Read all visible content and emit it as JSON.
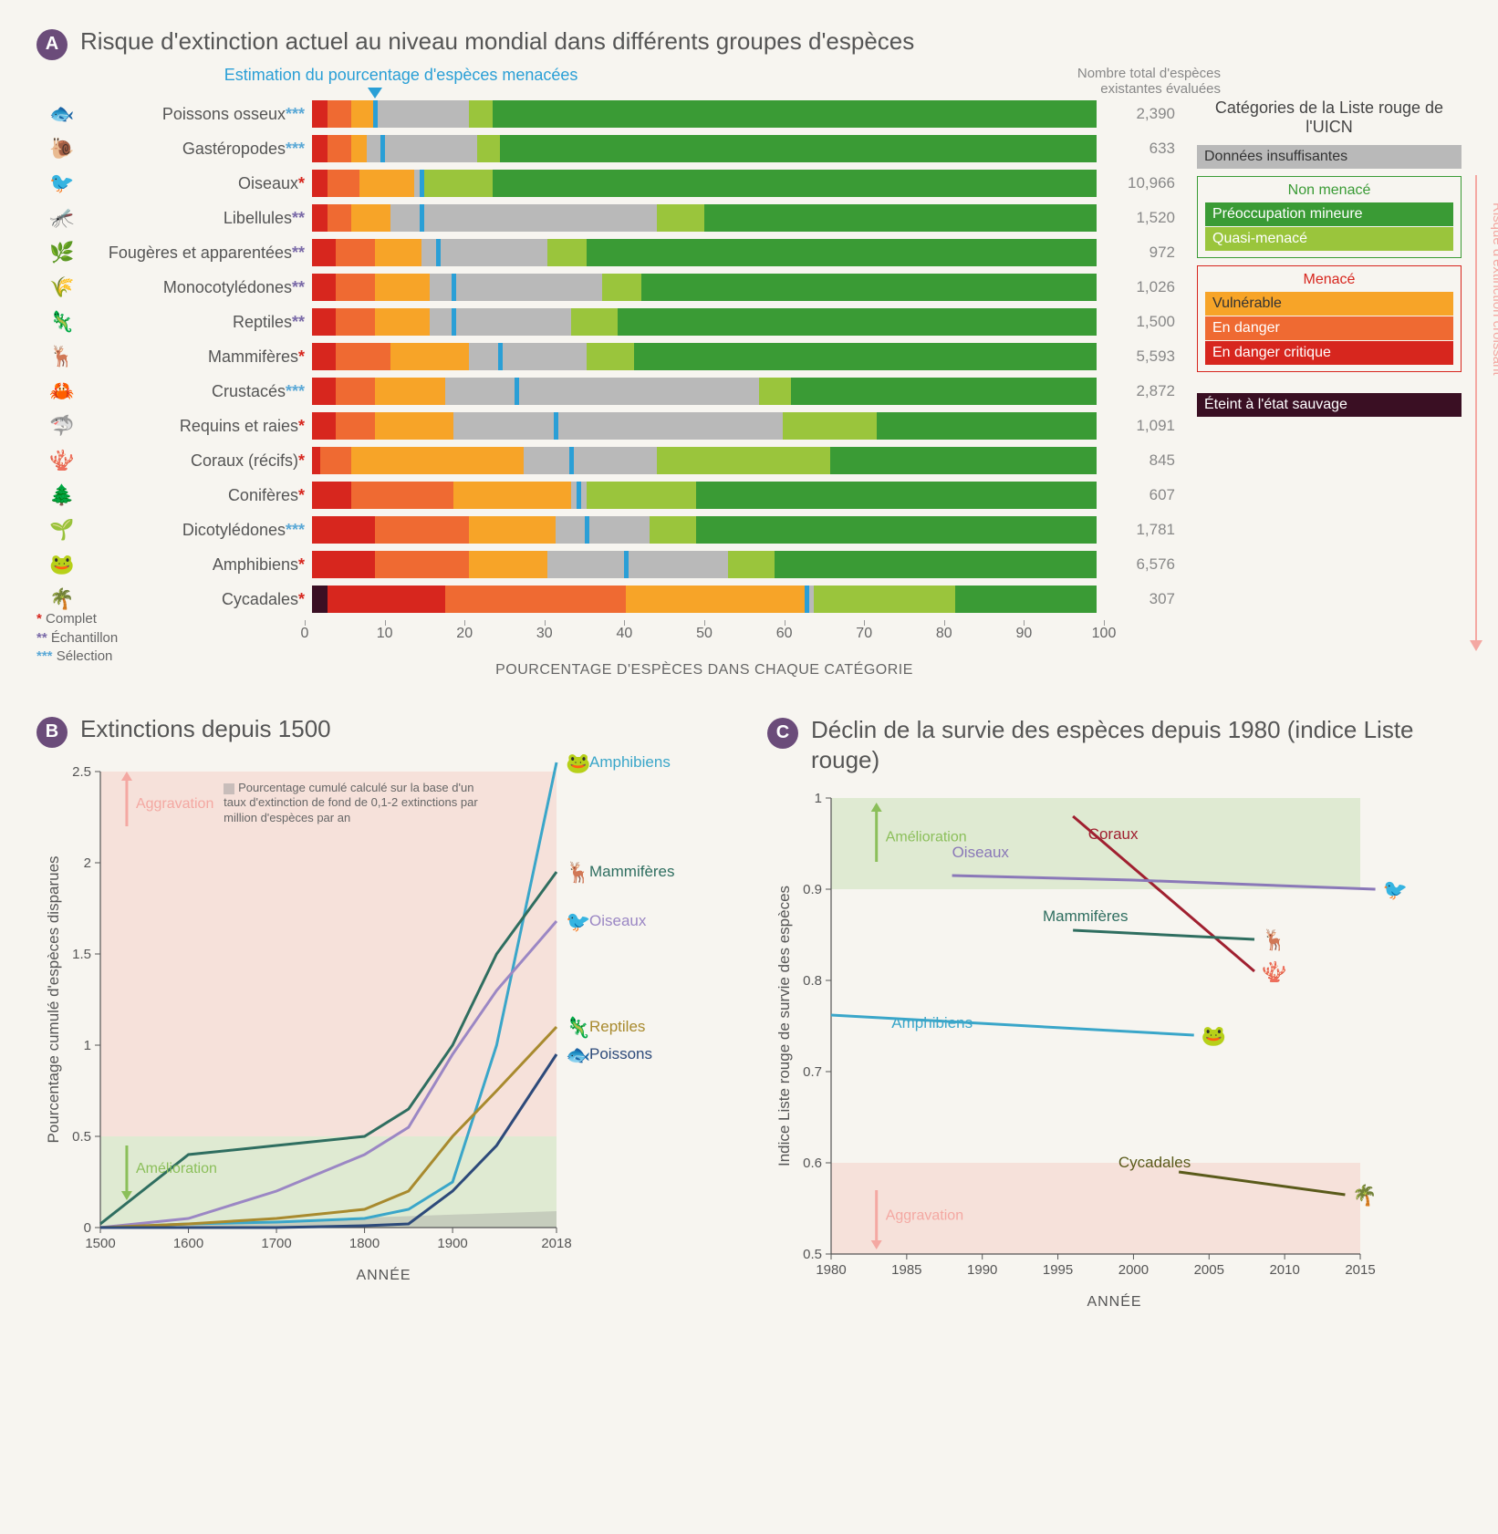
{
  "colors": {
    "badge": "#6b4c7a",
    "estimate_tick": "#2a9fd6",
    "cat_EX": "#3a0f23",
    "cat_CR": "#d7261e",
    "cat_EN": "#ef6a32",
    "cat_VU": "#f7a428",
    "cat_DD": "#b9b9b9",
    "cat_NT": "#9ac53c",
    "cat_LC": "#3a9b35",
    "fn_complet": "#d7261e",
    "fn_echantillon": "#7a6aa8",
    "fn_selection": "#5aa8d6",
    "band_green": "#c7e0b4",
    "band_pink": "#f6cdc3",
    "arrow_green": "#8bbf5a",
    "arrow_pink": "#f4a8a2",
    "grey_text": "#888888"
  },
  "panelA": {
    "title": "Risque d'extinction actuel au niveau mondial dans différents groupes d'espèces",
    "estimate_label": "Estimation du pourcentage d'espèces menacées",
    "count_header": "Nombre total d'espèces existantes évaluées",
    "x_axis_title": "POURCENTAGE D'ESPÈCES DANS CHAQUE CATÉGORIE",
    "x_ticks": [
      0,
      10,
      20,
      30,
      40,
      50,
      60,
      70,
      80,
      90,
      100
    ],
    "footnotes": [
      {
        "mark": "*",
        "color_key": "fn_complet",
        "label": "Complet"
      },
      {
        "mark": "**",
        "color_key": "fn_echantillon",
        "label": "Échantillon"
      },
      {
        "mark": "***",
        "color_key": "fn_selection",
        "label": "Sélection"
      }
    ],
    "legend": {
      "title": "Catégories de la Liste rouge de l'UICN",
      "dd": "Données insuffisantes",
      "non_menace": {
        "head": "Non menacé",
        "border": "#3a9b35",
        "items": [
          {
            "label": "Préoccupation mineure",
            "color_key": "cat_LC"
          },
          {
            "label": "Quasi-menacé",
            "color_key": "cat_NT"
          }
        ]
      },
      "menace": {
        "head": "Menacé",
        "border": "#d7261e",
        "items": [
          {
            "label": "Vulnérable",
            "color_key": "cat_VU",
            "text": "#333"
          },
          {
            "label": "En danger",
            "color_key": "cat_EN",
            "text": "#fff"
          },
          {
            "label": "En danger critique",
            "color_key": "cat_CR",
            "text": "#fff"
          }
        ]
      },
      "extinct": {
        "label": "Éteint à l'état sauvage",
        "color_key": "cat_EX",
        "text": "#fff"
      },
      "risk_arrow": "Risque d'extinction croissant"
    },
    "rows": [
      {
        "label": "Poissons osseux",
        "fn": "***",
        "fn_key": "fn_selection",
        "count": "2,390",
        "icon": "🐟",
        "seg": {
          "EX": 0,
          "CR": 2,
          "EN": 3,
          "VU": 3,
          "DD": 12,
          "NT": 3,
          "LC": 77
        },
        "est": 8
      },
      {
        "label": "Gastéropodes",
        "fn": "***",
        "fn_key": "fn_selection",
        "count": "633",
        "icon": "🐌",
        "seg": {
          "EX": 0,
          "CR": 2,
          "EN": 3,
          "VU": 2,
          "DD": 14,
          "NT": 3,
          "LC": 76
        },
        "est": 9
      },
      {
        "label": "Oiseaux",
        "fn": "*",
        "fn_key": "fn_complet",
        "count": "10,966",
        "icon": "🐦",
        "seg": {
          "EX": 0,
          "CR": 2,
          "EN": 4,
          "VU": 7,
          "DD": 1,
          "NT": 9,
          "LC": 77
        },
        "est": 14
      },
      {
        "label": "Libellules",
        "fn": "**",
        "fn_key": "fn_echantillon",
        "count": "1,520",
        "icon": "🦟",
        "seg": {
          "EX": 0,
          "CR": 2,
          "EN": 3,
          "VU": 5,
          "DD": 34,
          "NT": 6,
          "LC": 50
        },
        "est": 14
      },
      {
        "label": "Fougères et apparentées",
        "fn": "**",
        "fn_key": "fn_echantillon",
        "count": "972",
        "icon": "🌿",
        "seg": {
          "EX": 0,
          "CR": 3,
          "EN": 5,
          "VU": 6,
          "DD": 16,
          "NT": 5,
          "LC": 65
        },
        "est": 16
      },
      {
        "label": "Monocotylédones",
        "fn": "**",
        "fn_key": "fn_echantillon",
        "count": "1,026",
        "icon": "🌾",
        "seg": {
          "EX": 0,
          "CR": 3,
          "EN": 5,
          "VU": 7,
          "DD": 22,
          "NT": 5,
          "LC": 58
        },
        "est": 18
      },
      {
        "label": "Reptiles",
        "fn": "**",
        "fn_key": "fn_echantillon",
        "count": "1,500",
        "icon": "🦎",
        "seg": {
          "EX": 0,
          "CR": 3,
          "EN": 5,
          "VU": 7,
          "DD": 18,
          "NT": 6,
          "LC": 61
        },
        "est": 18
      },
      {
        "label": "Mammifères",
        "fn": "*",
        "fn_key": "fn_complet",
        "count": "5,593",
        "icon": "🦌",
        "seg": {
          "EX": 0,
          "CR": 3,
          "EN": 7,
          "VU": 10,
          "DD": 15,
          "NT": 6,
          "LC": 59
        },
        "est": 24
      },
      {
        "label": "Crustacés",
        "fn": "***",
        "fn_key": "fn_selection",
        "count": "2,872",
        "icon": "🦀",
        "seg": {
          "EX": 0,
          "CR": 3,
          "EN": 5,
          "VU": 9,
          "DD": 40,
          "NT": 4,
          "LC": 39
        },
        "est": 26
      },
      {
        "label": "Requins et raies",
        "fn": "*",
        "fn_key": "fn_complet",
        "count": "1,091",
        "icon": "🦈",
        "seg": {
          "EX": 0,
          "CR": 3,
          "EN": 5,
          "VU": 10,
          "DD": 42,
          "NT": 12,
          "LC": 28
        },
        "est": 31
      },
      {
        "label": "Coraux (récifs)",
        "fn": "*",
        "fn_key": "fn_complet",
        "count": "845",
        "icon": "🪸",
        "seg": {
          "EX": 0,
          "CR": 1,
          "EN": 4,
          "VU": 22,
          "DD": 17,
          "NT": 22,
          "LC": 34
        },
        "est": 33
      },
      {
        "label": "Conifères",
        "fn": "*",
        "fn_key": "fn_complet",
        "count": "607",
        "icon": "🌲",
        "seg": {
          "EX": 0,
          "CR": 5,
          "EN": 13,
          "VU": 15,
          "DD": 2,
          "NT": 14,
          "LC": 51
        },
        "est": 34
      },
      {
        "label": "Dicotylédones",
        "fn": "***",
        "fn_key": "fn_selection",
        "count": "1,781",
        "icon": "🌱",
        "seg": {
          "EX": 0,
          "CR": 8,
          "EN": 12,
          "VU": 11,
          "DD": 12,
          "NT": 6,
          "LC": 51
        },
        "est": 35
      },
      {
        "label": "Amphibiens",
        "fn": "*",
        "fn_key": "fn_complet",
        "count": "6,576",
        "icon": "🐸",
        "seg": {
          "EX": 0,
          "CR": 8,
          "EN": 12,
          "VU": 10,
          "DD": 23,
          "NT": 6,
          "LC": 41
        },
        "est": 40
      },
      {
        "label": "Cycadales",
        "fn": "*",
        "fn_key": "fn_complet",
        "count": "307",
        "icon": "🌴",
        "seg": {
          "EX": 2,
          "CR": 15,
          "EN": 23,
          "VU": 23,
          "DD": 1,
          "NT": 18,
          "LC": 18
        },
        "est": 63
      }
    ]
  },
  "panelB": {
    "title": "Extinctions depuis 1500",
    "y_title": "Pourcentage cumulé d'espèces disparues",
    "x_title": "ANNÉE",
    "x_ticks": [
      1500,
      1600,
      1700,
      1800,
      1900,
      2018
    ],
    "y_ticks": [
      0,
      0.5,
      1.0,
      1.5,
      2.0,
      2.5
    ],
    "note": "Pourcentage cumulé calculé sur la base d'un taux d'extinction de fond de 0,1-2 extinctions par million d'espèces par an",
    "aggravation": "Aggravation",
    "amelioration": "Amélioration",
    "series": [
      {
        "name": "Amphibiens",
        "color": "#3aa6c9",
        "icon": "🐸",
        "pts": [
          [
            1500,
            0
          ],
          [
            1600,
            0.02
          ],
          [
            1700,
            0.03
          ],
          [
            1800,
            0.05
          ],
          [
            1850,
            0.1
          ],
          [
            1900,
            0.25
          ],
          [
            1950,
            1.0
          ],
          [
            2018,
            2.55
          ]
        ]
      },
      {
        "name": "Mammifères",
        "color": "#2f6e60",
        "icon": "🦌",
        "pts": [
          [
            1500,
            0.02
          ],
          [
            1600,
            0.4
          ],
          [
            1700,
            0.45
          ],
          [
            1800,
            0.5
          ],
          [
            1850,
            0.65
          ],
          [
            1900,
            1.0
          ],
          [
            1950,
            1.5
          ],
          [
            2018,
            1.95
          ]
        ]
      },
      {
        "name": "Oiseaux",
        "color": "#9b87c4",
        "icon": "🐦",
        "pts": [
          [
            1500,
            0
          ],
          [
            1600,
            0.05
          ],
          [
            1700,
            0.2
          ],
          [
            1800,
            0.4
          ],
          [
            1850,
            0.55
          ],
          [
            1900,
            0.95
          ],
          [
            1950,
            1.3
          ],
          [
            2018,
            1.68
          ]
        ]
      },
      {
        "name": "Reptiles",
        "color": "#a88a2e",
        "icon": "🦎",
        "pts": [
          [
            1500,
            0
          ],
          [
            1600,
            0.02
          ],
          [
            1700,
            0.05
          ],
          [
            1800,
            0.1
          ],
          [
            1850,
            0.2
          ],
          [
            1900,
            0.5
          ],
          [
            1950,
            0.75
          ],
          [
            2018,
            1.1
          ]
        ]
      },
      {
        "name": "Poissons",
        "color": "#2d4a7a",
        "icon": "🐟",
        "pts": [
          [
            1500,
            0
          ],
          [
            1600,
            0
          ],
          [
            1700,
            0
          ],
          [
            1800,
            0.01
          ],
          [
            1850,
            0.02
          ],
          [
            1900,
            0.2
          ],
          [
            1950,
            0.45
          ],
          [
            2018,
            0.95
          ]
        ]
      }
    ],
    "background_band": [
      [
        1500,
        0.005
      ],
      [
        2018,
        0.09
      ]
    ]
  },
  "panelC": {
    "title": "Déclin de la survie des espèces depuis 1980 (indice Liste rouge)",
    "y_title": "Indice Liste rouge de survie des espèces",
    "x_title": "ANNÉE",
    "x_ticks": [
      1980,
      1985,
      1990,
      1995,
      2000,
      2005,
      2010,
      2015
    ],
    "y_ticks": [
      0.5,
      0.6,
      0.7,
      0.8,
      0.9,
      1.0
    ],
    "aggravation": "Aggravation",
    "amelioration": "Amélioration",
    "series": [
      {
        "name": "Coraux",
        "color": "#a02030",
        "icon": "🪸",
        "pts": [
          [
            1996,
            0.98
          ],
          [
            2008,
            0.81
          ]
        ],
        "label_at": [
          1997,
          0.955
        ]
      },
      {
        "name": "Oiseaux",
        "color": "#8a78b8",
        "icon": "🐦",
        "pts": [
          [
            1988,
            0.915
          ],
          [
            2000,
            0.91
          ],
          [
            2008,
            0.905
          ],
          [
            2016,
            0.9
          ]
        ],
        "label_at": [
          1988,
          0.935
        ]
      },
      {
        "name": "Mammifères",
        "color": "#2f6e60",
        "icon": "🦌",
        "pts": [
          [
            1996,
            0.855
          ],
          [
            2008,
            0.845
          ]
        ],
        "label_at": [
          1994,
          0.865
        ]
      },
      {
        "name": "Amphibiens",
        "color": "#3aa6c9",
        "icon": "🐸",
        "pts": [
          [
            1980,
            0.762
          ],
          [
            2004,
            0.74
          ]
        ],
        "label_at": [
          1984,
          0.748
        ]
      },
      {
        "name": "Cycadales",
        "color": "#5a5a1a",
        "icon": "🌴",
        "pts": [
          [
            2003,
            0.59
          ],
          [
            2014,
            0.565
          ]
        ],
        "label_at": [
          1999,
          0.595
        ]
      }
    ]
  }
}
